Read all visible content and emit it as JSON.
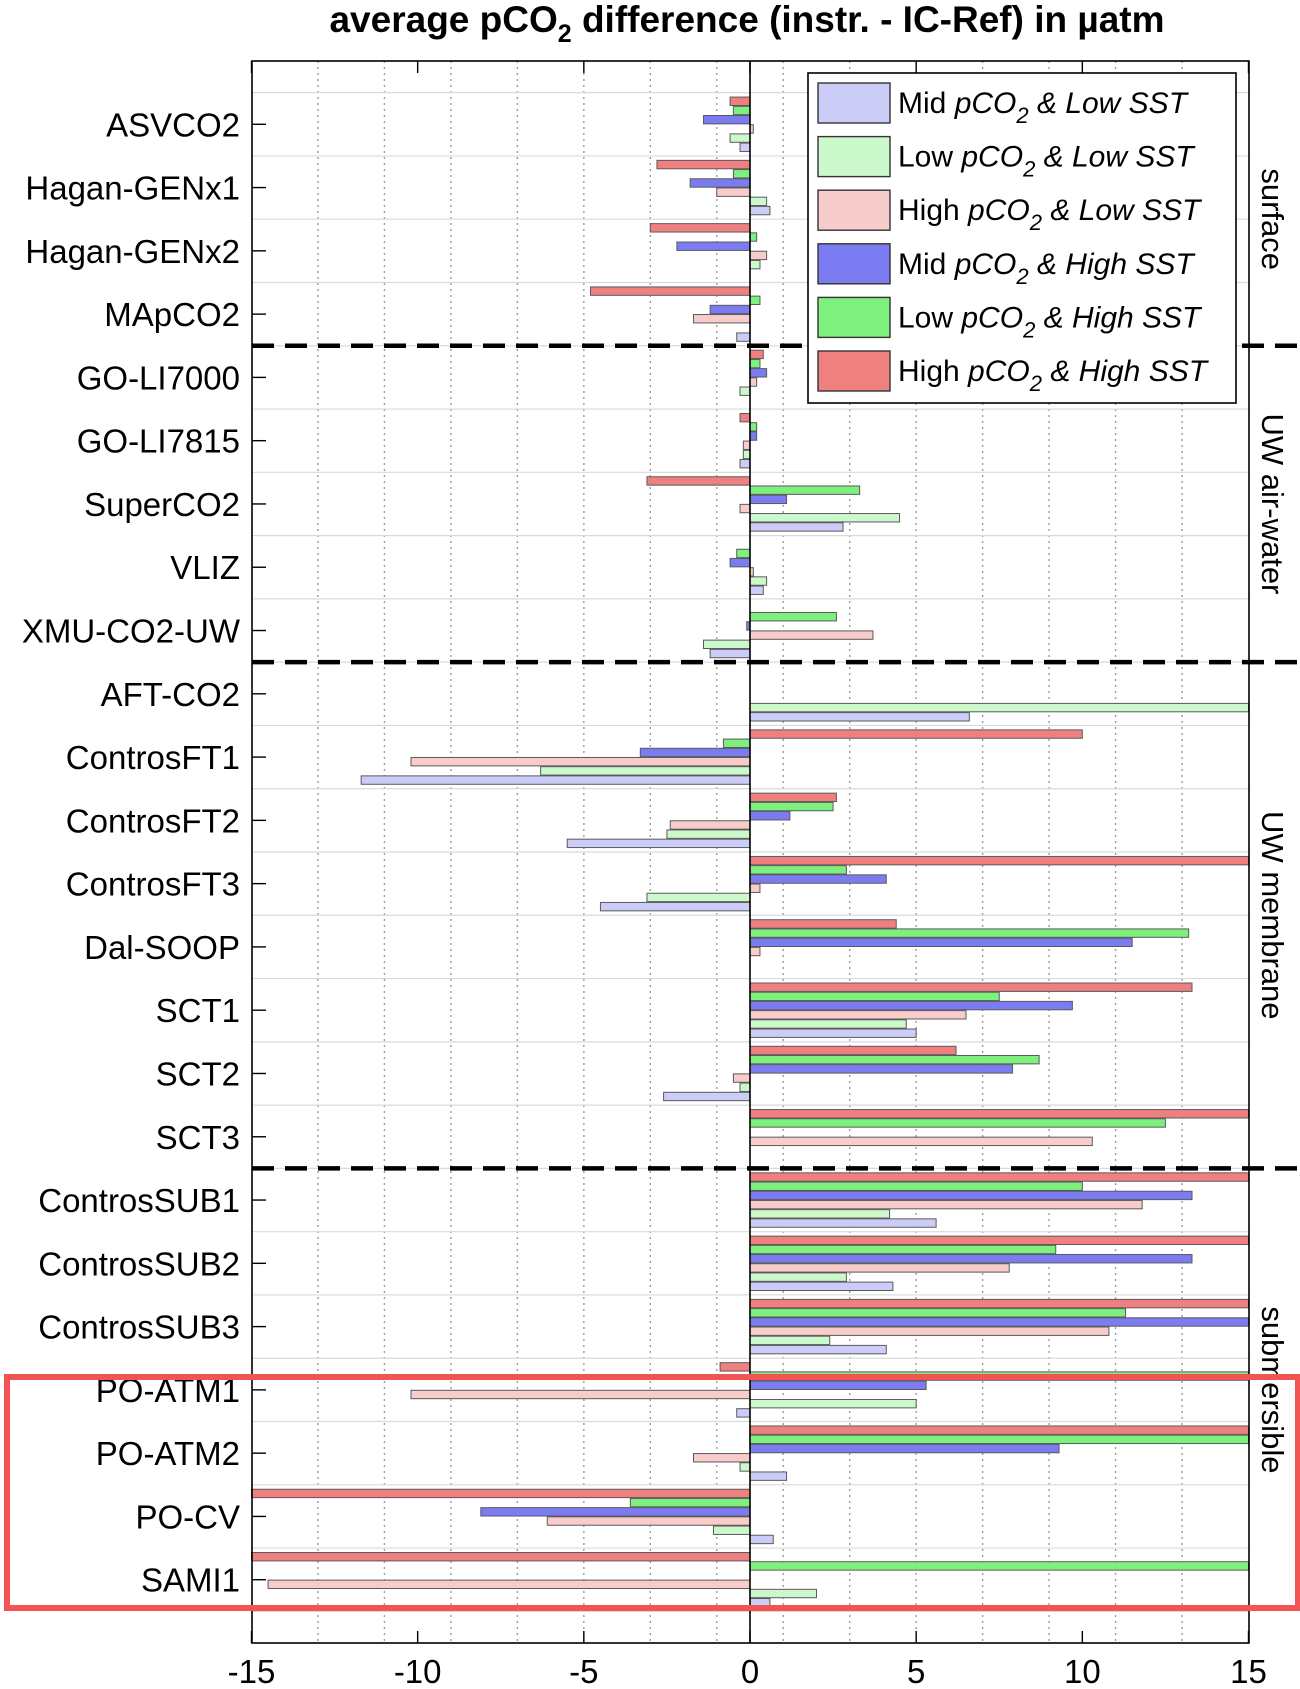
{
  "chart_data": {
    "type": "bar",
    "orientation": "horizontal",
    "title": {
      "prefix": "average pCO",
      "subscript": "2",
      "suffix": " difference (instr. - IC-Ref) in µatm"
    },
    "xlim": [
      -15,
      15
    ],
    "xticks": [
      -15,
      -10,
      -5,
      0,
      5,
      10,
      15
    ],
    "categories": [
      "ASVCO2",
      "Hagan-GENx1",
      "Hagan-GENx2",
      "MApCO2",
      "GO-LI7000",
      "GO-LI7815",
      "SuperCO2",
      "VLIZ",
      "XMU-CO2-UW",
      "AFT-CO2",
      "ControsFT1",
      "ControsFT2",
      "ControsFT3",
      "Dal-SOOP",
      "SCT1",
      "SCT2",
      "SCT3",
      "ControsSUB1",
      "ControsSUB2",
      "ControsSUB3",
      "PO-ATM1",
      "PO-ATM2",
      "PO-CV",
      "SAMI1"
    ],
    "groups": [
      {
        "label": "surface",
        "start": 0,
        "end": 3
      },
      {
        "label": "UW air-water",
        "start": 4,
        "end": 8
      },
      {
        "label": "UW membrane",
        "start": 9,
        "end": 16
      },
      {
        "label": "submersible",
        "start": 17,
        "end": 23
      }
    ],
    "series": [
      {
        "name": "High pCO2 & High SST",
        "legend": {
          "a": "High ",
          "b": "pCO",
          "c": "2",
          "d": " & High SST"
        },
        "fill": "#f08080",
        "values": [
          -0.6,
          -2.8,
          -3.0,
          -4.8,
          0.4,
          -0.3,
          -3.1,
          null,
          null,
          null,
          10.0,
          2.6,
          15,
          4.4,
          13.3,
          6.2,
          15,
          15,
          15,
          15,
          -0.9,
          15,
          -15,
          -15
        ]
      },
      {
        "name": "Low pCO2 & High SST",
        "legend": {
          "a": "Low ",
          "b": "pCO",
          "c": "2",
          "d": " & High SST"
        },
        "fill": "#7df07d",
        "values": [
          -0.5,
          -0.5,
          0.2,
          0.3,
          0.3,
          0.2,
          3.3,
          -0.4,
          2.6,
          null,
          -0.8,
          2.5,
          2.9,
          13.2,
          7.5,
          8.7,
          12.5,
          10.0,
          9.2,
          11.3,
          15,
          15,
          -3.6,
          15
        ]
      },
      {
        "name": "Mid pCO2 & High SST",
        "legend": {
          "a": "Mid ",
          "b": "pCO",
          "c": "2",
          "d": " & High SST"
        },
        "fill": "#7c7cf2",
        "values": [
          -1.4,
          -1.8,
          -2.2,
          -1.2,
          0.5,
          0.2,
          1.1,
          -0.6,
          -0.1,
          null,
          -3.3,
          1.2,
          4.1,
          11.5,
          9.7,
          7.9,
          null,
          13.3,
          13.3,
          15,
          5.3,
          9.3,
          -8.1,
          null
        ]
      },
      {
        "name": "High pCO2 & Low SST",
        "legend": {
          "a": "High ",
          "b": "pCO",
          "c": "2",
          "d": " & Low SST"
        },
        "fill": "#f9cccc",
        "values": [
          0.1,
          -1.0,
          0.5,
          -1.7,
          0.2,
          -0.2,
          -0.3,
          0.1,
          3.7,
          null,
          -10.2,
          -2.4,
          0.3,
          0.3,
          6.5,
          -0.5,
          10.3,
          11.8,
          7.8,
          10.8,
          -10.2,
          -1.7,
          -6.1,
          -14.5
        ]
      },
      {
        "name": "Low pCO2 & Low SST",
        "legend": {
          "a": "Low ",
          "b": "pCO",
          "c": "2",
          "d": " & Low SST"
        },
        "fill": "#ccf9cc",
        "values": [
          -0.6,
          0.5,
          0.3,
          null,
          -0.3,
          -0.2,
          4.5,
          0.5,
          -1.4,
          15,
          -6.3,
          -2.5,
          -3.1,
          null,
          4.7,
          -0.3,
          null,
          4.2,
          2.9,
          2.4,
          5.0,
          -0.3,
          -1.1,
          2.0
        ]
      },
      {
        "name": "Mid pCO2 & Low SST",
        "legend": {
          "a": "Mid ",
          "b": "pCO",
          "c": "2",
          "d": " & Low SST"
        },
        "fill": "#ccccf8",
        "values": [
          -0.3,
          0.6,
          null,
          -0.4,
          null,
          -0.3,
          2.8,
          0.4,
          -1.2,
          6.6,
          -11.7,
          -5.5,
          -4.5,
          null,
          5.0,
          -2.6,
          null,
          5.6,
          4.3,
          4.1,
          -0.4,
          1.1,
          0.7,
          0.6
        ]
      }
    ],
    "legend_order": [
      5,
      4,
      3,
      2,
      1,
      0
    ],
    "legend_position": "top-right",
    "grid": "x-dotted"
  },
  "colors": {
    "highlight_box": "#f25353",
    "bar_stroke": "#5a5a5a",
    "grid": "#9c9c9c"
  }
}
